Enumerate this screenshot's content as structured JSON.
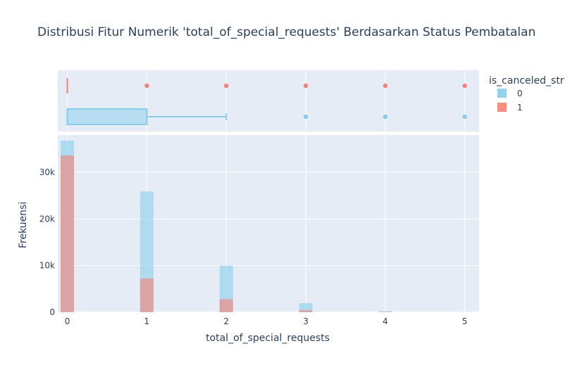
{
  "chart_data": {
    "type": "bar",
    "title": "Distribusi Fitur Numerik 'total_of_special_requests' Berdasarkan Status Pembatalan",
    "xlabel": "total_of_special_requests",
    "ylabel": "Frekuensi",
    "categories": [
      0,
      1,
      2,
      3,
      4,
      5
    ],
    "x_ticks": [
      "0",
      "1",
      "2",
      "3",
      "4",
      "5"
    ],
    "y_ticks": [
      {
        "value": 0,
        "label": "0"
      },
      {
        "value": 10000,
        "label": "10k"
      },
      {
        "value": 20000,
        "label": "20k"
      },
      {
        "value": 30000,
        "label": "30k"
      }
    ],
    "ylim": [
      0,
      38000
    ],
    "xlim": [
      -0.12,
      5.18
    ],
    "legend": {
      "title": "is_canceled_str",
      "placement": "top-right",
      "items": [
        {
          "label": "0",
          "color": "#87ceeb"
        },
        {
          "label": "1",
          "color": "#fa8072"
        }
      ]
    },
    "series": [
      {
        "name": "0",
        "color": "#87ceeb",
        "values": [
          36800,
          25900,
          10000,
          1950,
          230,
          30
        ]
      },
      {
        "name": "1",
        "color": "#fa8072",
        "values": [
          33600,
          7250,
          2800,
          420,
          55,
          8
        ]
      }
    ],
    "box_plots": [
      {
        "series": "0",
        "color": "#87ceeb",
        "q1": 0,
        "median": 0,
        "q3": 1,
        "lower_fence": 0,
        "upper_fence": 2,
        "outliers": [
          3,
          4,
          5
        ]
      },
      {
        "series": "1",
        "color": "#fa8072",
        "q1": 0,
        "median": 0,
        "q3": 0,
        "lower_fence": 0,
        "upper_fence": 0,
        "outliers": [
          1,
          2,
          3,
          4,
          5
        ]
      }
    ]
  }
}
